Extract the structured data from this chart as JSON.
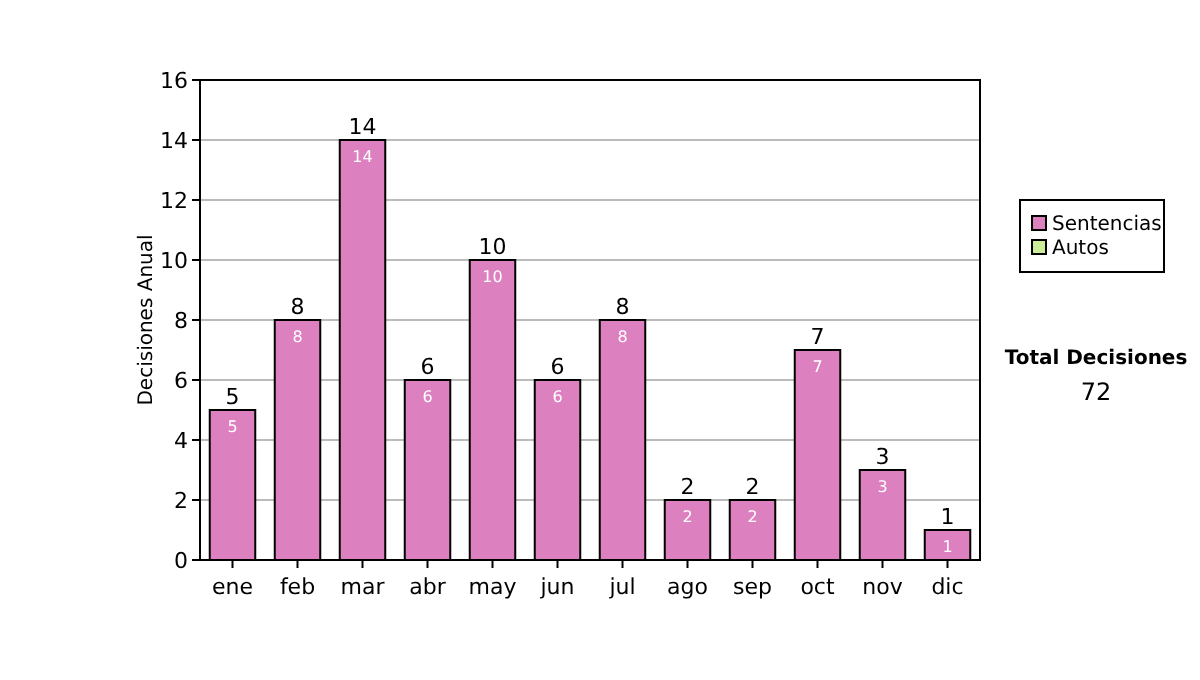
{
  "chart_data": {
    "type": "bar",
    "stacked": true,
    "ylabel": "Decisiones Anual",
    "categories": [
      "ene",
      "feb",
      "mar",
      "abr",
      "may",
      "jun",
      "jul",
      "ago",
      "sep",
      "oct",
      "nov",
      "dic"
    ],
    "series": [
      {
        "name": "Sentencias",
        "color": "#dd80c0",
        "values": [
          5,
          8,
          14,
          6,
          10,
          6,
          8,
          2,
          2,
          7,
          3,
          1
        ],
        "value_labels": [
          "5",
          "8",
          "14",
          "6",
          "10",
          "6",
          "8",
          "2",
          "2",
          "7",
          "3",
          "1"
        ]
      },
      {
        "name": "Autos",
        "color": "#ccee99",
        "values": [
          0,
          0,
          0,
          0,
          0,
          0,
          0,
          0,
          0,
          0,
          0,
          0
        ],
        "value_labels": [
          null,
          null,
          null,
          null,
          null,
          null,
          null,
          null,
          null,
          null,
          null,
          null
        ]
      }
    ],
    "totals": [
      "5",
      "8",
      "14",
      "6",
      "10",
      "6",
      "8",
      "2",
      "2",
      "7",
      "3",
      "1"
    ],
    "ylim": [
      0,
      16
    ],
    "yticks": [
      0,
      2,
      4,
      6,
      8,
      10,
      12,
      14,
      16
    ],
    "grid": "y",
    "legend": "right",
    "annotations": [
      "Total Decisiones",
      "72"
    ]
  }
}
